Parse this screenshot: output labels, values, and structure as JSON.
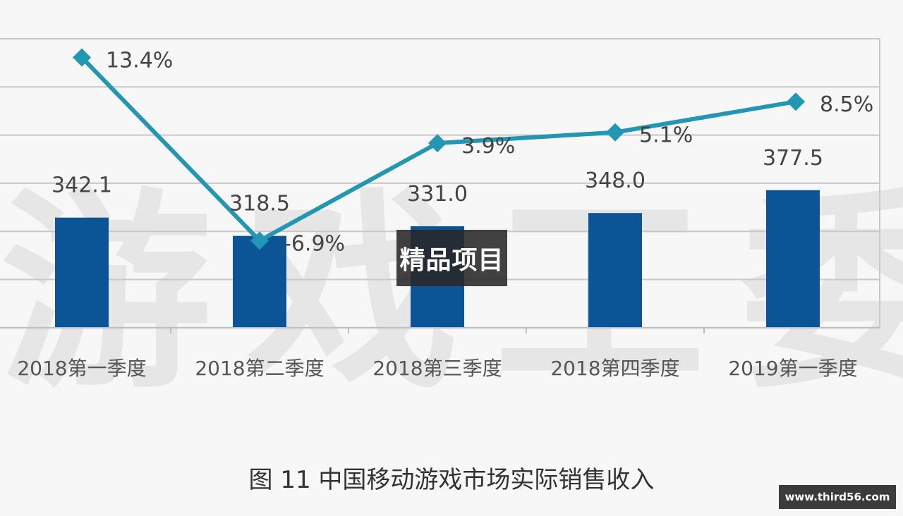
{
  "chart_data": {
    "type": "bar",
    "title": "图 11  中国移动游戏市场实际销售收入",
    "categories": [
      "2018第一季度",
      "2018第二季度",
      "2018第三季度",
      "2018第四季度",
      "2019第一季度"
    ],
    "series": [
      {
        "kind": "bar",
        "values": [
          342.1,
          318.5,
          331.0,
          348.0,
          377.5
        ],
        "labels": [
          "342.1",
          "318.5",
          "331.0",
          "348.0",
          "377.5"
        ],
        "color": "#0b5597"
      },
      {
        "kind": "line",
        "values": [
          13.4,
          -6.9,
          3.9,
          5.1,
          8.5
        ],
        "labels": [
          "13.4%",
          "-6.9%",
          "3.9%",
          "5.1%",
          "8.5%"
        ],
        "color": "#2297b3"
      }
    ],
    "grid": true
  },
  "watermark": "游戏工委",
  "overlay_label": "精品项目",
  "site_label": "www.third56.com"
}
